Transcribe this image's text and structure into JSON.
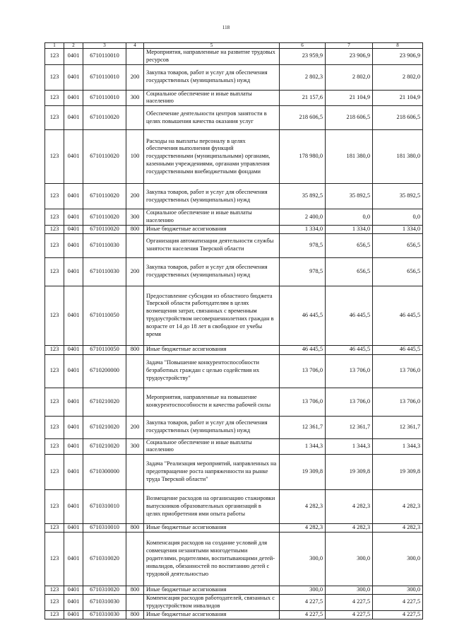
{
  "page_number": "118",
  "header": [
    "1",
    "2",
    "3",
    "4",
    "5",
    "6",
    "7",
    "8"
  ],
  "rows": [
    [
      "123",
      "0401",
      "6710110010",
      "",
      "Мероприятия, направленные на развитие трудовых ресурсов",
      "23 959,9",
      "23 906,9",
      "23 906,9"
    ],
    [
      "123",
      "0401",
      "6710110010",
      "200",
      "Закупка товаров, работ и услуг для обеспечения государственных (муниципальных) нужд",
      "2 802,3",
      "2 802,0",
      "2 802,0"
    ],
    [
      "123",
      "0401",
      "6710110010",
      "300",
      "Социальное обеспечение и иные выплаты населению",
      "21 157,6",
      "21 104,9",
      "21 104,9"
    ],
    [
      "123",
      "0401",
      "6710110020",
      "",
      "Обеспечение деятельности центров занятости в целях повышения качества оказания услуг",
      "218 606,5",
      "218 606,5",
      "218 606,5"
    ],
    [
      "123",
      "0401",
      "6710110020",
      "100",
      "Расходы на выплаты персоналу в целях обеспечения выполнения функций государственными (муниципальными) органами, казенными учреждениями, органами управления государственными внебюджетными фондами",
      "178 980,0",
      "181 380,0",
      "181 380,0"
    ],
    [
      "123",
      "0401",
      "6710110020",
      "200",
      "Закупка товаров, работ и услуг для обеспечения государственных (муниципальных) нужд",
      "35 892,5",
      "35 892,5",
      "35 892,5"
    ],
    [
      "123",
      "0401",
      "6710110020",
      "300",
      "Социальное обеспечение и иные выплаты населению",
      "2 400,0",
      "0,0",
      "0,0"
    ],
    [
      "123",
      "0401",
      "6710110020",
      "800",
      "Иные бюджетные ассигнования",
      "1 334,0",
      "1 334,0",
      "1 334,0"
    ],
    [
      "123",
      "0401",
      "6710110030",
      "",
      "Организация автоматизации деятельности службы занятости населения Тверской области",
      "978,5",
      "656,5",
      "656,5"
    ],
    [
      "123",
      "0401",
      "6710110030",
      "200",
      "Закупка товаров, работ и услуг для обеспечения государственных (муниципальных) нужд",
      "978,5",
      "656,5",
      "656,5"
    ],
    [
      "123",
      "0401",
      "6710110050",
      "",
      "Предоставление субсидии из областного бюджета Тверской области работодателям в целях возмещения затрат, связанных с временным трудоустройством несовершеннолетних граждан в возрасте от 14 до 18 лет в свободное от учебы время",
      "46 445,5",
      "46 445,5",
      "46 445,5"
    ],
    [
      "123",
      "0401",
      "6710110050",
      "800",
      "Иные бюджетные ассигнования",
      "46 445,5",
      "46 445,5",
      "46 445,5"
    ],
    [
      "123",
      "0401",
      "6710200000",
      "",
      "Задача \"Повышение конкурентоспособности безработных граждан с целью содействия их трудоустройству\"",
      "13 706,0",
      "13 706,0",
      "13 706,0"
    ],
    [
      "123",
      "0401",
      "6710210020",
      "",
      "Мероприятия, направленные на повышение конкурентоспособности и качества рабочей силы",
      "13 706,0",
      "13 706,0",
      "13 706,0"
    ],
    [
      "123",
      "0401",
      "6710210020",
      "200",
      "Закупка товаров, работ и услуг для обеспечения государственных (муниципальных) нужд",
      "12 361,7",
      "12 361,7",
      "12 361,7"
    ],
    [
      "123",
      "0401",
      "6710210020",
      "300",
      "Социальное обеспечение и иные выплаты населению",
      "1 344,3",
      "1 344,3",
      "1 344,3"
    ],
    [
      "123",
      "0401",
      "6710300000",
      "",
      "Задача \"Реализация мероприятий, направленных на предотвращение роста напряженности на рынке труда Тверской области\"",
      "19 309,8",
      "19 309,8",
      "19 309,8"
    ],
    [
      "123",
      "0401",
      "6710310010",
      "",
      "Возмещение расходов на организацию стажировки выпускников образовательных организаций в целях приобретения ими опыта работы",
      "4 282,3",
      "4 282,3",
      "4 282,3"
    ],
    [
      "123",
      "0401",
      "6710310010",
      "800",
      "Иные бюджетные ассигнования",
      "4 282,3",
      "4 282,3",
      "4 282,3"
    ],
    [
      "123",
      "0401",
      "6710310020",
      "",
      "Компенсация расходов на создание условий для совмещения незанятыми многодетными родителями, родителями, воспитывающими детей-инвалидов, обязанностей по воспитанию детей с трудовой деятельностью",
      "300,0",
      "300,0",
      "300,0"
    ],
    [
      "123",
      "0401",
      "6710310020",
      "800",
      "Иные бюджетные ассигнования",
      "300,0",
      "300,0",
      "300,0"
    ],
    [
      "123",
      "0401",
      "6710310030",
      "",
      "Компенсация расходов работодателей, связанных с трудоустройством инвалидов",
      "4 227,5",
      "4 227,5",
      "4 227,5"
    ],
    [
      "123",
      "0401",
      "6710310030",
      "800",
      "Иные бюджетные ассигнования",
      "4 227,5",
      "4 227,5",
      "4 227,5"
    ]
  ]
}
